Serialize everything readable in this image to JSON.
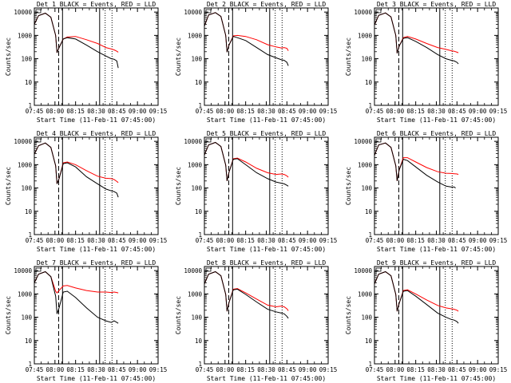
{
  "chart_data": [
    {
      "type": "line",
      "title": "Det 1  BLACK = Events, RED = LLD",
      "xlabel": "Start Time (11-Feb-11 07:45:00)",
      "ylabel": "Counts/sec",
      "x_ticks": [
        "07:45",
        "08:00",
        "08:15",
        "08:30",
        "08:45",
        "09:00",
        "09:15"
      ],
      "y_ticks": [
        "1",
        "10",
        "100",
        "1000",
        "10000"
      ],
      "y_scale": "log",
      "ylim": [
        1,
        15000
      ],
      "series": [
        {
          "name": "Events",
          "color": "#000000",
          "x": [
            0,
            3,
            8,
            12,
            15.5,
            16.5,
            18,
            21,
            24,
            30,
            38,
            46,
            52,
            56,
            58,
            60,
            61
          ],
          "y": [
            3000,
            7000,
            9000,
            6000,
            1000,
            180,
            300,
            700,
            800,
            700,
            380,
            200,
            130,
            100,
            95,
            80,
            40
          ]
        },
        {
          "name": "LLD",
          "color": "#ff0000",
          "x": [
            0,
            3,
            8,
            12,
            15.5,
            16.5,
            18,
            21,
            24,
            30,
            38,
            46,
            52,
            56,
            58,
            60,
            61
          ],
          "y": [
            3000,
            7000,
            9000,
            6000,
            1000,
            180,
            300,
            700,
            850,
            900,
            650,
            450,
            300,
            260,
            240,
            210,
            190
          ]
        }
      ],
      "solid_lines": [
        20.5,
        47.5
      ],
      "dashed_lines": [
        17.7
      ],
      "dotted_lines": [
        51.5,
        56.5
      ]
    },
    {
      "type": "line",
      "title": "Det 2  BLACK = Events, RED = LLD",
      "xlabel": "Start Time (11-Feb-11 07:45:00)",
      "ylabel": "Counts/sec",
      "x_ticks": [
        "07:45",
        "08:00",
        "08:15",
        "08:30",
        "08:45",
        "09:00",
        "09:15"
      ],
      "y_ticks": [
        "1",
        "10",
        "100",
        "1000",
        "10000"
      ],
      "y_scale": "log",
      "ylim": [
        1,
        15000
      ],
      "series": [
        {
          "name": "Events",
          "color": "#000000",
          "x": [
            0,
            3,
            8,
            12,
            15.5,
            16.5,
            18,
            21,
            24,
            30,
            38,
            46,
            52,
            56,
            58,
            60,
            61
          ],
          "y": [
            2500,
            7500,
            9500,
            6500,
            1000,
            190,
            400,
            900,
            800,
            600,
            300,
            150,
            110,
            90,
            85,
            70,
            50
          ]
        },
        {
          "name": "LLD",
          "color": "#ff0000",
          "x": [
            0,
            3,
            8,
            12,
            15.5,
            16.5,
            18,
            21,
            24,
            30,
            38,
            46,
            52,
            56,
            58,
            60,
            61
          ],
          "y": [
            2500,
            7500,
            9500,
            6500,
            1000,
            190,
            400,
            950,
            1000,
            900,
            650,
            400,
            320,
            290,
            300,
            280,
            220
          ]
        }
      ],
      "solid_lines": [
        20.5,
        47.5
      ],
      "dashed_lines": [
        17.7
      ],
      "dotted_lines": [
        51.5,
        56.5
      ]
    },
    {
      "type": "line",
      "title": "Det 3  BLACK = Events, RED = LLD",
      "xlabel": "Start Time (11-Feb-11 07:45:00)",
      "ylabel": "Counts/sec",
      "x_ticks": [
        "07:45",
        "08:00",
        "08:15",
        "08:30",
        "08:45",
        "09:00",
        "09:15"
      ],
      "y_ticks": [
        "1",
        "10",
        "100",
        "1000",
        "10000"
      ],
      "y_scale": "log",
      "ylim": [
        1,
        15000
      ],
      "series": [
        {
          "name": "Events",
          "color": "#000000",
          "x": [
            0,
            3,
            8,
            12,
            15.5,
            16.5,
            18,
            21,
            24,
            30,
            38,
            46,
            52,
            56,
            58,
            60,
            61
          ],
          "y": [
            2800,
            7200,
            9200,
            6200,
            1000,
            170,
            350,
            750,
            800,
            550,
            300,
            150,
            100,
            85,
            80,
            70,
            60
          ]
        },
        {
          "name": "LLD",
          "color": "#ff0000",
          "x": [
            0,
            3,
            8,
            12,
            15.5,
            16.5,
            18,
            21,
            24,
            30,
            38,
            46,
            52,
            56,
            58,
            60,
            61
          ],
          "y": [
            2800,
            7200,
            9200,
            6200,
            1000,
            170,
            350,
            800,
            900,
            700,
            450,
            300,
            250,
            220,
            210,
            190,
            180
          ]
        }
      ],
      "solid_lines": [
        20.5,
        47.5
      ],
      "dashed_lines": [
        17.7
      ],
      "dotted_lines": [
        51.5,
        56.5
      ]
    },
    {
      "type": "line",
      "title": "Det 4  BLACK = Events, RED = LLD",
      "xlabel": "Start Time (11-Feb-11 07:45:00)",
      "ylabel": "Counts/sec",
      "x_ticks": [
        "07:45",
        "08:00",
        "08:15",
        "08:30",
        "08:45",
        "09:00",
        "09:15"
      ],
      "y_ticks": [
        "1",
        "10",
        "100",
        "1000",
        "10000"
      ],
      "y_scale": "log",
      "ylim": [
        1,
        15000
      ],
      "series": [
        {
          "name": "Events",
          "color": "#000000",
          "x": [
            0,
            3,
            8,
            12,
            15.5,
            16.5,
            18,
            21,
            24,
            30,
            38,
            46,
            52,
            56,
            58,
            60,
            61
          ],
          "y": [
            2800,
            6500,
            8500,
            5500,
            900,
            150,
            250,
            1100,
            1200,
            800,
            300,
            150,
            90,
            75,
            70,
            60,
            40
          ]
        },
        {
          "name": "LLD",
          "color": "#ff0000",
          "x": [
            0,
            3,
            8,
            12,
            15.5,
            16.5,
            18,
            21,
            24,
            30,
            38,
            46,
            52,
            56,
            58,
            60,
            61
          ],
          "y": [
            2800,
            6500,
            8500,
            5500,
            900,
            150,
            250,
            1200,
            1300,
            1000,
            550,
            320,
            260,
            250,
            230,
            190,
            170
          ]
        }
      ],
      "solid_lines": [
        20.5,
        47.5
      ],
      "dashed_lines": [
        17.7
      ],
      "dotted_lines": [
        51.5,
        56.5
      ]
    },
    {
      "type": "line",
      "title": "Det 5  BLACK = Events, RED = LLD",
      "xlabel": "Start Time (11-Feb-11 07:45:00)",
      "ylabel": "Counts/sec",
      "x_ticks": [
        "07:45",
        "08:00",
        "08:15",
        "08:30",
        "08:45",
        "09:00",
        "09:15"
      ],
      "y_ticks": [
        "1",
        "10",
        "100",
        "1000",
        "10000"
      ],
      "y_scale": "log",
      "ylim": [
        1,
        15000
      ],
      "series": [
        {
          "name": "Events",
          "color": "#000000",
          "x": [
            0,
            3,
            8,
            12,
            15.5,
            16.5,
            18,
            21,
            24,
            30,
            38,
            46,
            52,
            56,
            58,
            60,
            61
          ],
          "y": [
            2600,
            7000,
            9000,
            6000,
            950,
            200,
            500,
            1700,
            1800,
            1000,
            450,
            250,
            180,
            160,
            150,
            130,
            120
          ]
        },
        {
          "name": "LLD",
          "color": "#ff0000",
          "x": [
            0,
            3,
            8,
            12,
            15.5,
            16.5,
            18,
            21,
            24,
            30,
            38,
            46,
            52,
            56,
            58,
            60,
            61
          ],
          "y": [
            2600,
            7000,
            9000,
            6000,
            950,
            200,
            500,
            1800,
            1900,
            1300,
            700,
            450,
            380,
            400,
            380,
            330,
            290
          ]
        }
      ],
      "solid_lines": [
        20.5,
        47.5
      ],
      "dashed_lines": [
        17.7
      ],
      "dotted_lines": [
        51.5,
        56.5
      ]
    },
    {
      "type": "line",
      "title": "Det 6  BLACK = Events, RED = LLD",
      "xlabel": "Start Time (11-Feb-11 07:45:00)",
      "ylabel": "Counts/sec",
      "x_ticks": [
        "07:45",
        "08:00",
        "08:15",
        "08:30",
        "08:45",
        "09:00",
        "09:15"
      ],
      "y_ticks": [
        "1",
        "10",
        "100",
        "1000",
        "10000"
      ],
      "y_scale": "log",
      "ylim": [
        1,
        15000
      ],
      "series": [
        {
          "name": "Events",
          "color": "#000000",
          "x": [
            0,
            3,
            8,
            12,
            15.5,
            16.5,
            18,
            21,
            24,
            30,
            38,
            46,
            52,
            56,
            58,
            59
          ],
          "y": [
            2500,
            7000,
            8500,
            5500,
            900,
            200,
            600,
            1700,
            1500,
            800,
            350,
            180,
            120,
            110,
            110,
            100
          ]
        },
        {
          "name": "LLD",
          "color": "#ff0000",
          "x": [
            0,
            3,
            8,
            12,
            15.5,
            16.5,
            18,
            21,
            24,
            30,
            38,
            46,
            52,
            56,
            58,
            60,
            61
          ],
          "y": [
            2500,
            7000,
            8500,
            5500,
            900,
            200,
            600,
            2000,
            2000,
            1300,
            750,
            500,
            430,
            420,
            410,
            400,
            380
          ]
        }
      ],
      "solid_lines": [
        20.5,
        47.5
      ],
      "dashed_lines": [
        17.7
      ],
      "dotted_lines": [
        51.5,
        56.5
      ]
    },
    {
      "type": "line",
      "title": "Det 7  BLACK = Events, RED = LLD",
      "xlabel": "Start Time (11-Feb-11 07:45:00)",
      "ylabel": "Counts/sec",
      "x_ticks": [
        "07:45",
        "08:00",
        "08:15",
        "08:30",
        "08:45",
        "09:00",
        "09:15"
      ],
      "y_ticks": [
        "1",
        "10",
        "100",
        "1000",
        "10000"
      ],
      "y_scale": "log",
      "ylim": [
        1,
        15000
      ],
      "series": [
        {
          "name": "Events",
          "color": "#000000",
          "x": [
            0,
            3,
            8,
            12,
            15.5,
            16.5,
            18,
            21,
            24,
            30,
            38,
            46,
            52,
            56,
            58,
            60,
            61
          ],
          "y": [
            3000,
            7000,
            9000,
            5500,
            800,
            140,
            250,
            1200,
            1300,
            700,
            250,
            100,
            70,
            60,
            70,
            60,
            55
          ]
        },
        {
          "name": "LLD",
          "color": "#ff0000",
          "x": [
            0,
            3,
            8,
            12,
            15.5,
            16.5,
            18,
            21,
            24,
            30,
            38,
            46,
            52,
            56,
            58,
            60,
            61
          ],
          "y": [
            3000,
            7000,
            9000,
            5500,
            1300,
            1100,
            1400,
            2200,
            2300,
            1800,
            1400,
            1200,
            1200,
            1150,
            1200,
            1150,
            1100
          ]
        }
      ],
      "solid_lines": [
        20.5,
        47.5
      ],
      "dashed_lines": [
        17.7
      ],
      "dotted_lines": [
        51.5,
        56.5
      ]
    },
    {
      "type": "line",
      "title": "Det 8  BLACK = Events, RED = LLD",
      "xlabel": "Start Time (11-Feb-11 07:45:00)",
      "ylabel": "Counts/sec",
      "x_ticks": [
        "07:45",
        "08:00",
        "08:15",
        "08:30",
        "08:45",
        "09:00",
        "09:15"
      ],
      "y_ticks": [
        "1",
        "10",
        "100",
        "1000",
        "10000"
      ],
      "y_scale": "log",
      "ylim": [
        1,
        15000
      ],
      "series": [
        {
          "name": "Events",
          "color": "#000000",
          "x": [
            0,
            3,
            8,
            12,
            15.5,
            16.5,
            18,
            21,
            24,
            30,
            38,
            46,
            52,
            56,
            58,
            60,
            61
          ],
          "y": [
            2700,
            7000,
            9000,
            6000,
            950,
            180,
            450,
            1500,
            1600,
            950,
            450,
            220,
            170,
            150,
            140,
            110,
            90
          ]
        },
        {
          "name": "LLD",
          "color": "#ff0000",
          "x": [
            0,
            3,
            8,
            12,
            15.5,
            16.5,
            18,
            21,
            24,
            30,
            38,
            46,
            52,
            56,
            58,
            60,
            61
          ],
          "y": [
            2700,
            7000,
            9000,
            6000,
            950,
            180,
            450,
            1600,
            1700,
            1100,
            600,
            330,
            280,
            300,
            280,
            230,
            190
          ]
        }
      ],
      "solid_lines": [
        20.5,
        47.5
      ],
      "dashed_lines": [
        17.7
      ],
      "dotted_lines": [
        51.5,
        56.5
      ]
    },
    {
      "type": "line",
      "title": "Det 9  BLACK = Events, RED = LLD",
      "xlabel": "Start Time (11-Feb-11 07:45:00)",
      "ylabel": "Counts/sec",
      "x_ticks": [
        "07:45",
        "08:00",
        "08:15",
        "08:30",
        "08:45",
        "09:00",
        "09:15"
      ],
      "y_ticks": [
        "1",
        "10",
        "100",
        "1000",
        "10000"
      ],
      "y_scale": "log",
      "ylim": [
        1,
        15000
      ],
      "series": [
        {
          "name": "Events",
          "color": "#000000",
          "x": [
            0,
            3,
            8,
            12,
            15.5,
            16.5,
            18,
            21,
            24,
            30,
            38,
            46,
            52,
            56,
            58,
            60,
            61
          ],
          "y": [
            2700,
            7000,
            9000,
            6000,
            950,
            180,
            400,
            1300,
            1400,
            800,
            350,
            150,
            100,
            80,
            75,
            65,
            55
          ]
        },
        {
          "name": "LLD",
          "color": "#ff0000",
          "x": [
            0,
            3,
            8,
            12,
            15.5,
            16.5,
            18,
            21,
            24,
            30,
            38,
            46,
            52,
            56,
            58,
            60,
            61
          ],
          "y": [
            2700,
            7000,
            9000,
            6000,
            950,
            180,
            400,
            1400,
            1500,
            1000,
            550,
            320,
            250,
            230,
            220,
            200,
            180
          ]
        }
      ],
      "solid_lines": [
        20.5,
        47.5
      ],
      "dashed_lines": [
        17.7
      ],
      "dotted_lines": [
        51.5,
        56.5
      ]
    }
  ]
}
